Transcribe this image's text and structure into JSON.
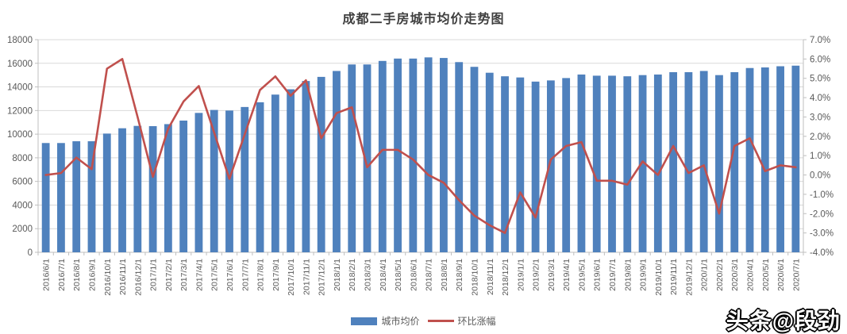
{
  "header": {
    "title": "成都二手房城市均价走势图"
  },
  "watermark": {
    "text": "头条@段劲"
  },
  "chart_data": {
    "type": "bar",
    "subtype": "bar-line-combo",
    "title": "成都二手房城市均价走势图",
    "grid": true,
    "legend_position": "bottom",
    "categories": [
      "2016/6/1",
      "2016/7/1",
      "2016/8/1",
      "2016/9/1",
      "2016/10/1",
      "2016/11/1",
      "2016/12/1",
      "2017/1/1",
      "2017/2/1",
      "2017/3/1",
      "2017/4/1",
      "2017/5/1",
      "2017/6/1",
      "2017/7/1",
      "2017/8/1",
      "2017/9/1",
      "2017/10/1",
      "2017/11/1",
      "2017/12/1",
      "2018/1/1",
      "2018/2/1",
      "2018/3/1",
      "2018/4/1",
      "2018/5/1",
      "2018/6/1",
      "2018/7/1",
      "2018/8/1",
      "2018/9/1",
      "2018/10/1",
      "2018/11/1",
      "2018/12/1",
      "2019/1/1",
      "2019/2/1",
      "2019/3/1",
      "2019/4/1",
      "2019/5/1",
      "2019/6/1",
      "2019/7/1",
      "2019/8/1",
      "2019/9/1",
      "2019/10/1",
      "2019/11/1",
      "2019/12/1",
      "2020/1/1",
      "2020/2/1",
      "2020/3/1",
      "2020/4/1",
      "2020/5/1",
      "2020/6/1",
      "2020/7/1"
    ],
    "series": [
      {
        "name": "城市均价",
        "type": "bar",
        "axis": "left",
        "color": "#4F81BD",
        "values": [
          9250,
          9250,
          9400,
          9400,
          10050,
          10500,
          10700,
          10680,
          10850,
          11150,
          11800,
          12050,
          12000,
          12300,
          12700,
          13350,
          13800,
          14500,
          14850,
          15350,
          15900,
          15900,
          16200,
          16400,
          16400,
          16500,
          16450,
          16100,
          15700,
          15200,
          14900,
          14800,
          14450,
          14550,
          14750,
          15050,
          14950,
          14950,
          14900,
          15000,
          15050,
          15250,
          15250,
          15350,
          15000,
          15250,
          15600,
          15650,
          15750,
          15800
        ]
      },
      {
        "name": "环比涨幅",
        "type": "line",
        "axis": "right",
        "color": "#C0504D",
        "values": [
          0.0,
          0.1,
          0.9,
          0.3,
          5.5,
          6.0,
          3.0,
          -0.1,
          2.4,
          3.8,
          4.6,
          2.2,
          -0.2,
          2.1,
          4.4,
          5.1,
          4.1,
          4.9,
          1.9,
          3.2,
          3.5,
          0.4,
          1.3,
          1.3,
          0.8,
          0.0,
          -0.4,
          -1.3,
          -2.1,
          -2.6,
          -3.0,
          -0.9,
          -2.2,
          0.8,
          1.5,
          1.7,
          -0.3,
          -0.3,
          -0.5,
          0.7,
          0.0,
          1.5,
          0.1,
          0.5,
          -2.0,
          1.5,
          1.9,
          0.2,
          0.5,
          0.4
        ]
      }
    ],
    "left_axis": {
      "min": 0,
      "max": 18000,
      "step": 2000,
      "tick_labels": [
        "0",
        "2000",
        "4000",
        "6000",
        "8000",
        "10000",
        "12000",
        "14000",
        "16000",
        "18000"
      ]
    },
    "right_axis": {
      "min": -4.0,
      "max": 7.0,
      "step": 1.0,
      "format": "percent",
      "tick_labels": [
        "-4.0%",
        "-3.0%",
        "-2.0%",
        "-1.0%",
        "0.0%",
        "1.0%",
        "2.0%",
        "3.0%",
        "4.0%",
        "5.0%",
        "6.0%",
        "7.0%"
      ]
    },
    "colors": {
      "gridline": "#D9D9D9",
      "axis_line": "#BFBFBF",
      "axis_text": "#595959"
    }
  }
}
